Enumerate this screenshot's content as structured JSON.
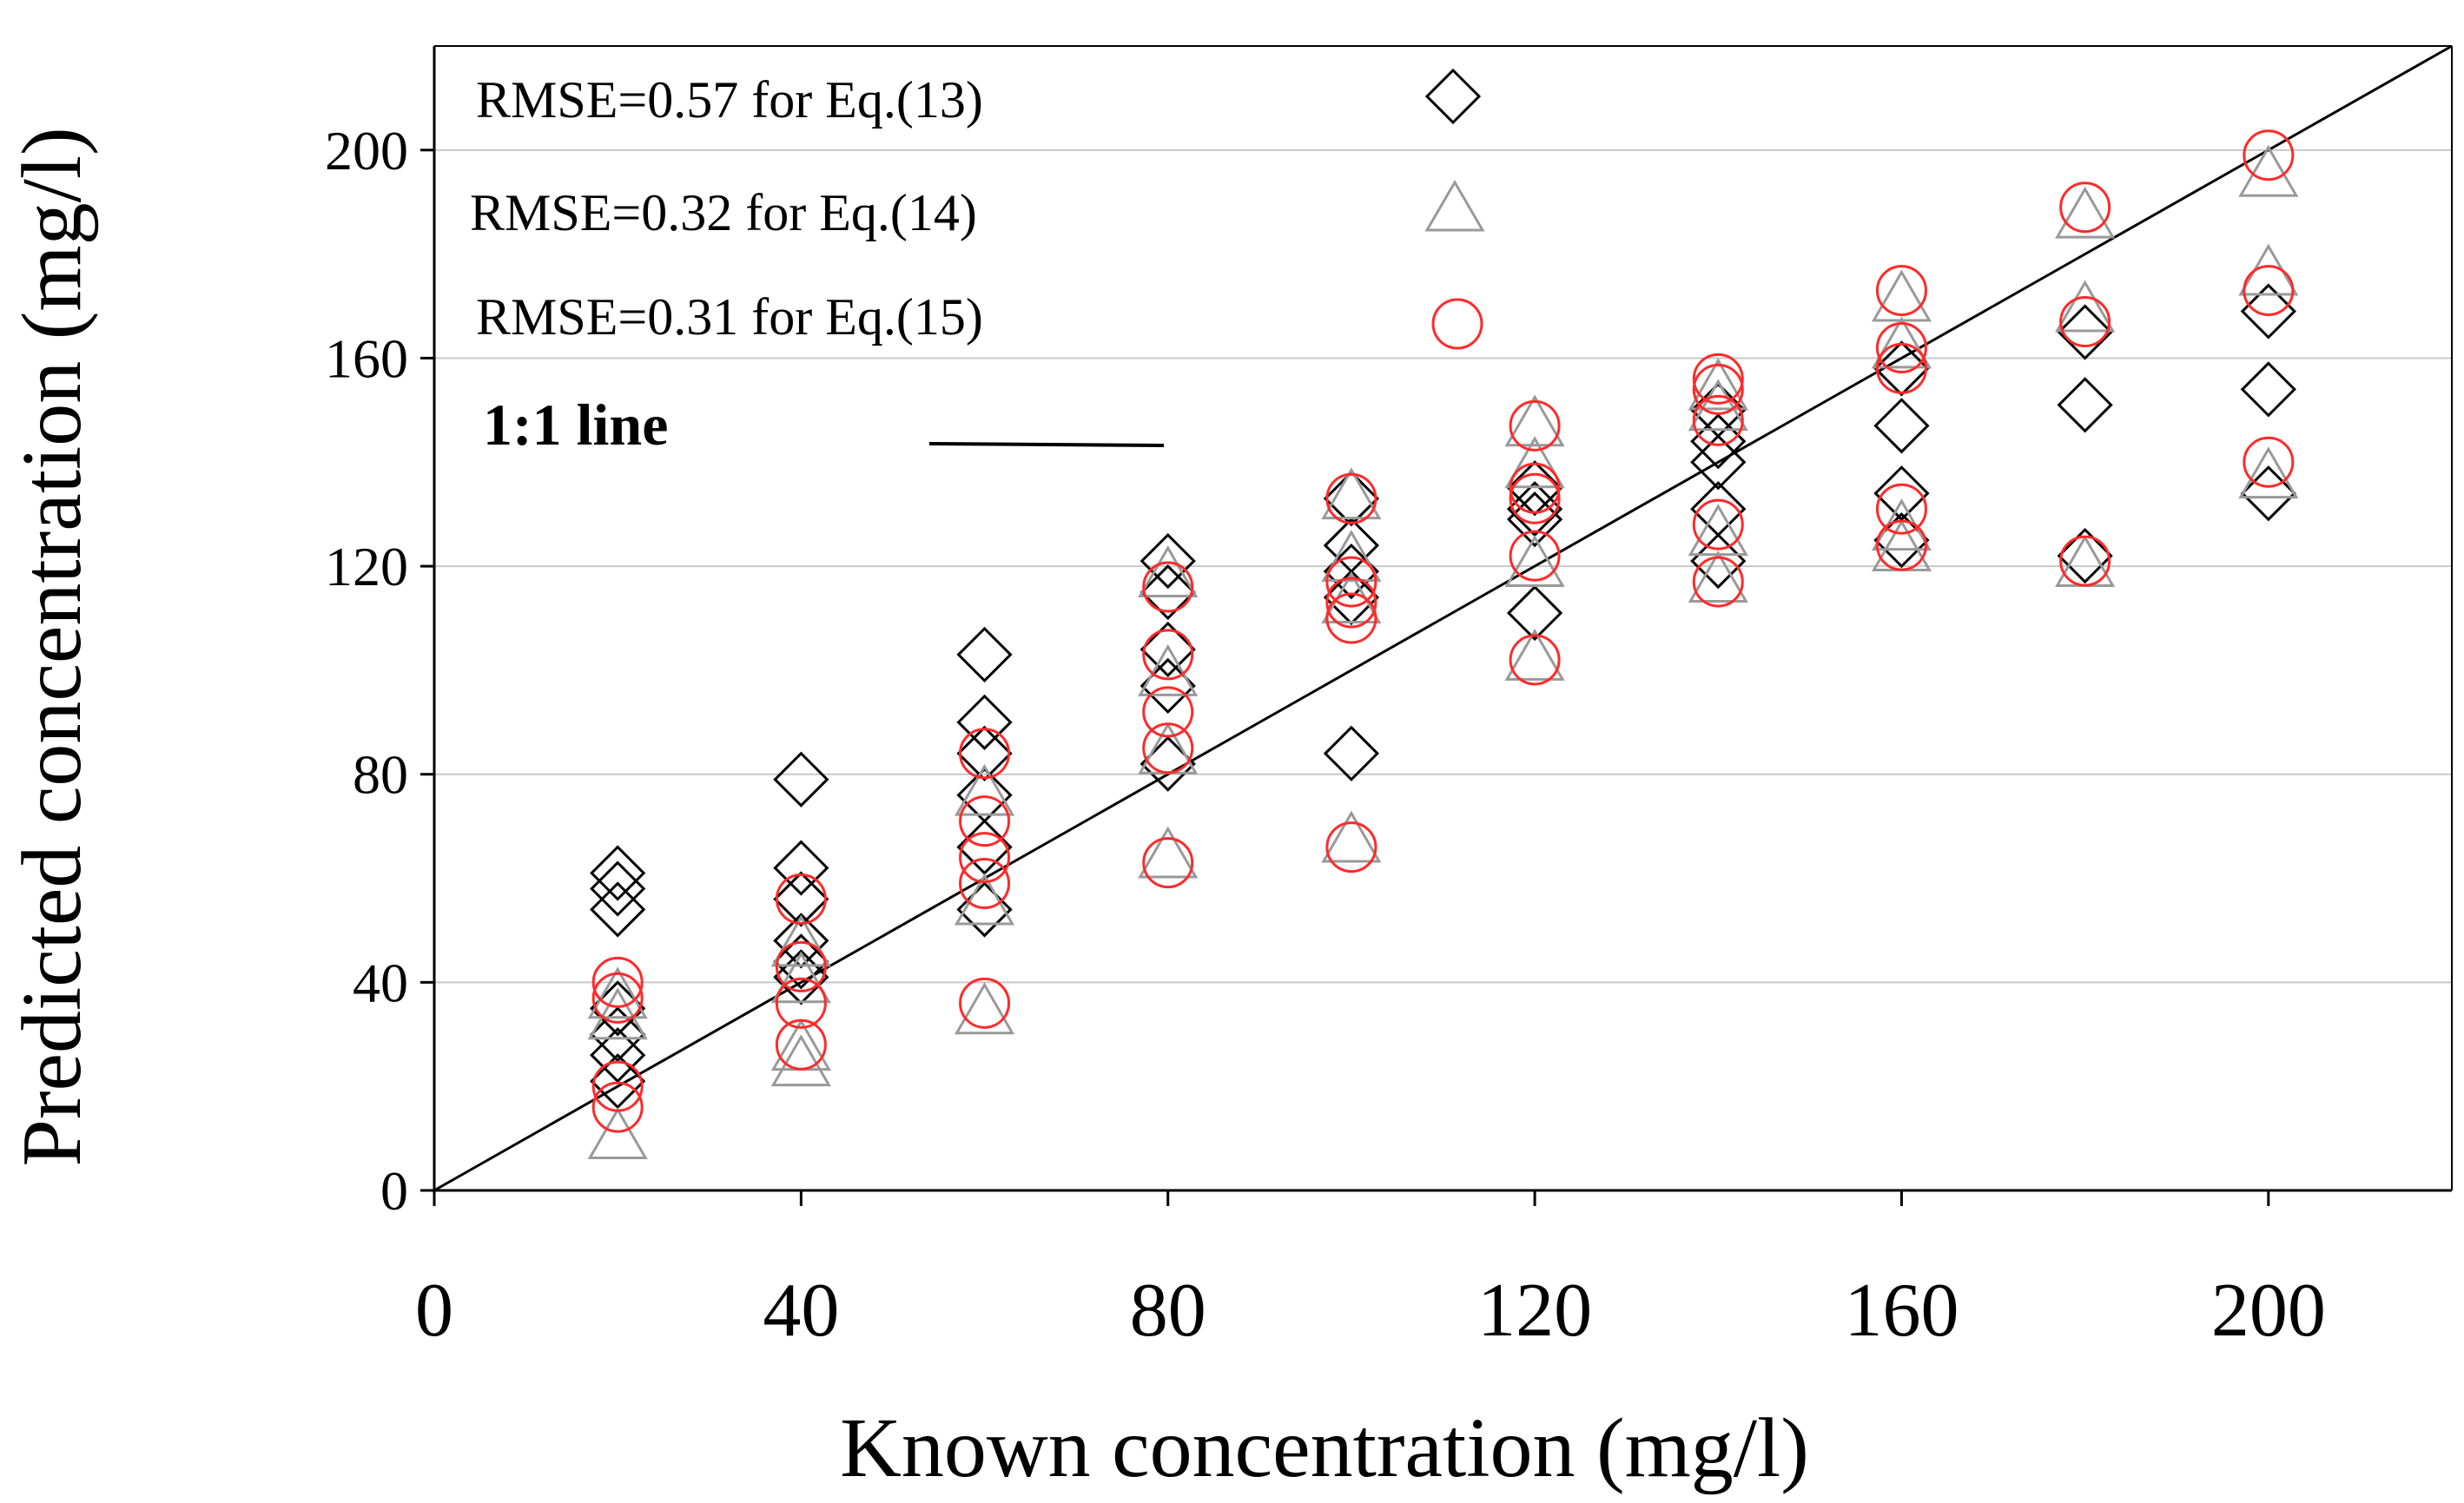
{
  "chart_data": {
    "type": "scatter",
    "title": "",
    "xlabel": "Known concentration (mg/l)",
    "ylabel": "Predicted concentration (mg/l)",
    "xlim": [
      0,
      220
    ],
    "ylim": [
      0,
      220
    ],
    "x_ticks": [
      0,
      40,
      80,
      120,
      160,
      200
    ],
    "y_ticks": [
      0,
      40,
      80,
      120,
      160,
      200
    ],
    "grid": "horizontal",
    "legend_position": "top-left",
    "reference_line": {
      "label": "1:1 line",
      "slope": 1,
      "intercept": 0,
      "color": "#000000"
    },
    "series": [
      {
        "name": "RMSE=0.57 for Eq.(13)",
        "marker": "diamond",
        "color": "#000000",
        "points": [
          [
            20,
            61
          ],
          [
            20,
            58
          ],
          [
            20,
            54
          ],
          [
            20,
            35
          ],
          [
            20,
            30
          ],
          [
            20,
            26
          ],
          [
            20,
            21
          ],
          [
            40,
            79
          ],
          [
            40,
            62
          ],
          [
            40,
            56
          ],
          [
            40,
            48
          ],
          [
            40,
            44
          ],
          [
            40,
            41
          ],
          [
            60,
            103
          ],
          [
            60,
            90
          ],
          [
            60,
            84
          ],
          [
            60,
            76
          ],
          [
            60,
            66
          ],
          [
            60,
            54
          ],
          [
            80,
            121
          ],
          [
            80,
            115
          ],
          [
            80,
            104
          ],
          [
            80,
            97
          ],
          [
            80,
            82
          ],
          [
            100,
            133
          ],
          [
            100,
            124
          ],
          [
            100,
            119
          ],
          [
            100,
            114
          ],
          [
            100,
            84
          ],
          [
            120,
            135
          ],
          [
            120,
            131
          ],
          [
            120,
            129
          ],
          [
            120,
            111
          ],
          [
            140,
            150
          ],
          [
            140,
            144
          ],
          [
            140,
            140
          ],
          [
            140,
            131
          ],
          [
            140,
            121
          ],
          [
            160,
            158
          ],
          [
            160,
            147
          ],
          [
            160,
            134
          ],
          [
            160,
            125
          ],
          [
            180,
            165
          ],
          [
            180,
            151
          ],
          [
            180,
            122
          ],
          [
            200,
            169
          ],
          [
            200,
            154
          ],
          [
            200,
            134
          ]
        ]
      },
      {
        "name": "RMSE=0.32 for Eq.(14)",
        "marker": "triangle",
        "color": "#999999",
        "points": [
          [
            20,
            37
          ],
          [
            20,
            33
          ],
          [
            20,
            10
          ],
          [
            40,
            47
          ],
          [
            40,
            40
          ],
          [
            40,
            27
          ],
          [
            40,
            24
          ],
          [
            60,
            76
          ],
          [
            60,
            55
          ],
          [
            60,
            34
          ],
          [
            80,
            118
          ],
          [
            80,
            99
          ],
          [
            80,
            84
          ],
          [
            80,
            64
          ],
          [
            100,
            133
          ],
          [
            100,
            121
          ],
          [
            100,
            113
          ],
          [
            100,
            67
          ],
          [
            120,
            147
          ],
          [
            120,
            139
          ],
          [
            120,
            120
          ],
          [
            120,
            102
          ],
          [
            140,
            154
          ],
          [
            140,
            150
          ],
          [
            140,
            126
          ],
          [
            140,
            117
          ],
          [
            160,
            171
          ],
          [
            160,
            162
          ],
          [
            160,
            127
          ],
          [
            160,
            123
          ],
          [
            180,
            187
          ],
          [
            180,
            169
          ],
          [
            180,
            120
          ],
          [
            200,
            195
          ],
          [
            200,
            176
          ],
          [
            200,
            137
          ]
        ]
      },
      {
        "name": "RMSE=0.31 for Eq.(15)",
        "marker": "circle",
        "color": "#ff2a2a",
        "points": [
          [
            20,
            40
          ],
          [
            20,
            37
          ],
          [
            20,
            20
          ],
          [
            20,
            16
          ],
          [
            40,
            56
          ],
          [
            40,
            43
          ],
          [
            40,
            36
          ],
          [
            40,
            28
          ],
          [
            60,
            84
          ],
          [
            60,
            71
          ],
          [
            60,
            64
          ],
          [
            60,
            59
          ],
          [
            60,
            36
          ],
          [
            80,
            116
          ],
          [
            80,
            103
          ],
          [
            80,
            92
          ],
          [
            80,
            85
          ],
          [
            80,
            63
          ],
          [
            100,
            133
          ],
          [
            100,
            117
          ],
          [
            100,
            113
          ],
          [
            100,
            110
          ],
          [
            100,
            66
          ],
          [
            120,
            147
          ],
          [
            120,
            135
          ],
          [
            120,
            133
          ],
          [
            120,
            122
          ],
          [
            120,
            102
          ],
          [
            140,
            156
          ],
          [
            140,
            154
          ],
          [
            140,
            148
          ],
          [
            140,
            128
          ],
          [
            140,
            117
          ],
          [
            160,
            173
          ],
          [
            160,
            162
          ],
          [
            160,
            158
          ],
          [
            160,
            131
          ],
          [
            160,
            124
          ],
          [
            180,
            189
          ],
          [
            180,
            167
          ],
          [
            180,
            121
          ],
          [
            200,
            199
          ],
          [
            200,
            173
          ],
          [
            200,
            140
          ]
        ]
      }
    ]
  }
}
